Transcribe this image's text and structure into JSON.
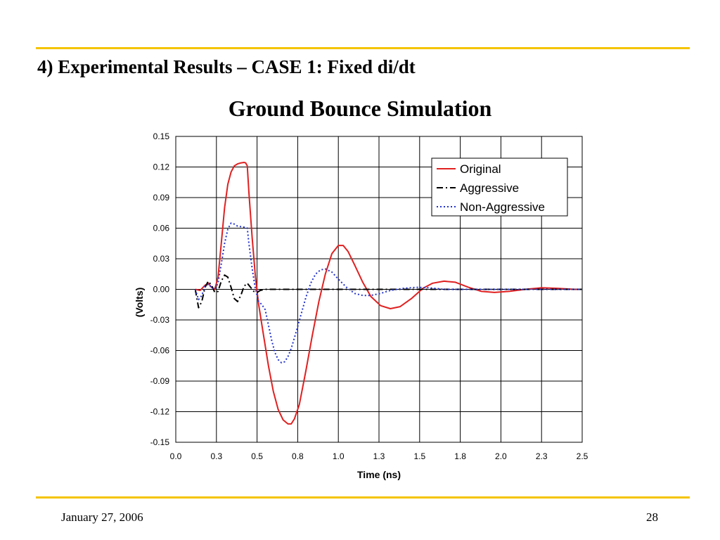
{
  "slide": {
    "title": "4) Experimental Results – CASE 1: Fixed di/dt",
    "footer_date": "January 27, 2006",
    "page_number": "28",
    "rule_color": "#F5C400"
  },
  "chart_data": {
    "type": "line",
    "title": "Ground Bounce Simulation",
    "xlabel": "Time (ns)",
    "ylabel": "(Volts)",
    "xlim": [
      0.0,
      2.5
    ],
    "ylim": [
      -0.15,
      0.15
    ],
    "xticks": [
      0.0,
      0.25,
      0.5,
      0.75,
      1.0,
      1.25,
      1.5,
      1.75,
      2.0,
      2.25,
      2.5
    ],
    "xtick_labels": [
      "0.0",
      "0.3",
      "0.5",
      "0.8",
      "1.0",
      "1.3",
      "1.5",
      "1.8",
      "2.0",
      "2.3",
      "2.5"
    ],
    "yticks": [
      0.15,
      0.12,
      0.09,
      0.06,
      0.03,
      0.0,
      -0.03,
      -0.06,
      -0.09,
      -0.12,
      -0.15
    ],
    "ytick_labels": [
      "0.15",
      "0.12",
      "0.09",
      "0.06",
      "0.03",
      "0.00",
      "-0.03",
      "-0.06",
      "-0.09",
      "-0.12",
      "-0.15"
    ],
    "grid": true,
    "legend_position": "top-right",
    "series": [
      {
        "name": "Original",
        "color": "#E02020",
        "dash": "solid",
        "points": [
          [
            0.12,
            0.0
          ],
          [
            0.15,
            -0.001
          ],
          [
            0.18,
            0.004
          ],
          [
            0.2,
            0.006
          ],
          [
            0.22,
            0.002
          ],
          [
            0.24,
            0.0
          ],
          [
            0.26,
            0.012
          ],
          [
            0.28,
            0.045
          ],
          [
            0.3,
            0.08
          ],
          [
            0.32,
            0.103
          ],
          [
            0.34,
            0.115
          ],
          [
            0.36,
            0.121
          ],
          [
            0.38,
            0.123
          ],
          [
            0.4,
            0.124
          ],
          [
            0.42,
            0.1245
          ],
          [
            0.43,
            0.124
          ],
          [
            0.44,
            0.121
          ],
          [
            0.45,
            0.095
          ],
          [
            0.47,
            0.05
          ],
          [
            0.49,
            0.012
          ],
          [
            0.51,
            -0.015
          ],
          [
            0.54,
            -0.045
          ],
          [
            0.57,
            -0.075
          ],
          [
            0.6,
            -0.1
          ],
          [
            0.63,
            -0.118
          ],
          [
            0.66,
            -0.128
          ],
          [
            0.69,
            -0.132
          ],
          [
            0.71,
            -0.132
          ],
          [
            0.73,
            -0.127
          ],
          [
            0.76,
            -0.113
          ],
          [
            0.8,
            -0.08
          ],
          [
            0.84,
            -0.045
          ],
          [
            0.88,
            -0.012
          ],
          [
            0.92,
            0.015
          ],
          [
            0.96,
            0.035
          ],
          [
            1.0,
            0.043
          ],
          [
            1.03,
            0.043
          ],
          [
            1.06,
            0.037
          ],
          [
            1.1,
            0.024
          ],
          [
            1.15,
            0.007
          ],
          [
            1.2,
            -0.007
          ],
          [
            1.26,
            -0.016
          ],
          [
            1.32,
            -0.019
          ],
          [
            1.38,
            -0.017
          ],
          [
            1.45,
            -0.009
          ],
          [
            1.52,
            0.001
          ],
          [
            1.58,
            0.006
          ],
          [
            1.65,
            0.008
          ],
          [
            1.72,
            0.007
          ],
          [
            1.8,
            0.002
          ],
          [
            1.88,
            -0.002
          ],
          [
            1.96,
            -0.003
          ],
          [
            2.05,
            -0.002
          ],
          [
            2.15,
            0.0
          ],
          [
            2.25,
            0.0015
          ],
          [
            2.35,
            0.001
          ],
          [
            2.45,
            0.0
          ],
          [
            2.5,
            0.0
          ]
        ]
      },
      {
        "name": "Aggressive",
        "color": "#000000",
        "dash": "dashdot",
        "points": [
          [
            0.12,
            0.0
          ],
          [
            0.14,
            -0.018
          ],
          [
            0.16,
            -0.012
          ],
          [
            0.18,
            0.002
          ],
          [
            0.2,
            0.008
          ],
          [
            0.22,
            0.004
          ],
          [
            0.24,
            -0.003
          ],
          [
            0.26,
            -0.002
          ],
          [
            0.28,
            0.008
          ],
          [
            0.3,
            0.014
          ],
          [
            0.32,
            0.012
          ],
          [
            0.34,
            0.002
          ],
          [
            0.36,
            -0.009
          ],
          [
            0.38,
            -0.012
          ],
          [
            0.4,
            -0.006
          ],
          [
            0.42,
            0.003
          ],
          [
            0.44,
            0.006
          ],
          [
            0.46,
            0.002
          ],
          [
            0.48,
            -0.002
          ],
          [
            0.5,
            -0.003
          ],
          [
            0.52,
            -0.001
          ],
          [
            0.55,
            0.0
          ],
          [
            0.58,
            0.0
          ],
          [
            0.6,
            0.0
          ],
          [
            2.5,
            0.0
          ]
        ]
      },
      {
        "name": "Non-Aggressive",
        "color": "#2233CC",
        "dash": "dotted",
        "points": [
          [
            0.12,
            0.0
          ],
          [
            0.14,
            -0.01
          ],
          [
            0.16,
            -0.006
          ],
          [
            0.18,
            0.003
          ],
          [
            0.2,
            0.005
          ],
          [
            0.22,
            0.002
          ],
          [
            0.24,
            0.0
          ],
          [
            0.26,
            0.006
          ],
          [
            0.28,
            0.025
          ],
          [
            0.3,
            0.045
          ],
          [
            0.32,
            0.059
          ],
          [
            0.34,
            0.065
          ],
          [
            0.36,
            0.064
          ],
          [
            0.38,
            0.062
          ],
          [
            0.42,
            0.061
          ],
          [
            0.44,
            0.06
          ],
          [
            0.45,
            0.045
          ],
          [
            0.47,
            0.02
          ],
          [
            0.49,
            0.0
          ],
          [
            0.51,
            -0.012
          ],
          [
            0.53,
            -0.015
          ],
          [
            0.55,
            -0.02
          ],
          [
            0.57,
            -0.035
          ],
          [
            0.59,
            -0.05
          ],
          [
            0.61,
            -0.062
          ],
          [
            0.63,
            -0.069
          ],
          [
            0.65,
            -0.072
          ],
          [
            0.67,
            -0.071
          ],
          [
            0.69,
            -0.066
          ],
          [
            0.71,
            -0.058
          ],
          [
            0.74,
            -0.042
          ],
          [
            0.77,
            -0.025
          ],
          [
            0.8,
            -0.008
          ],
          [
            0.83,
            0.006
          ],
          [
            0.86,
            0.015
          ],
          [
            0.89,
            0.019
          ],
          [
            0.92,
            0.02
          ],
          [
            0.96,
            0.017
          ],
          [
            1.0,
            0.01
          ],
          [
            1.05,
            0.002
          ],
          [
            1.1,
            -0.004
          ],
          [
            1.15,
            -0.006
          ],
          [
            1.2,
            -0.006
          ],
          [
            1.26,
            -0.004
          ],
          [
            1.32,
            -0.001
          ],
          [
            1.4,
            0.001
          ],
          [
            1.48,
            0.002
          ],
          [
            1.56,
            0.0015
          ],
          [
            1.65,
            0.0
          ],
          [
            1.8,
            0.0
          ],
          [
            2.0,
            0.0
          ],
          [
            2.5,
            0.0
          ]
        ]
      }
    ]
  }
}
